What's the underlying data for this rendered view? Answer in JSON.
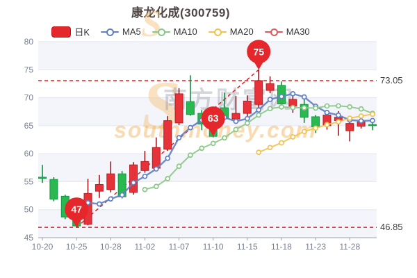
{
  "title": "康龙化成(300759)",
  "legend": {
    "items": [
      {
        "label": "日K",
        "type": "candle",
        "color": "#e5262b"
      },
      {
        "label": "MA5",
        "type": "line",
        "color": "#6080c6"
      },
      {
        "label": "MA10",
        "type": "line",
        "color": "#88c886"
      },
      {
        "label": "MA20",
        "type": "line",
        "color": "#f4c14e"
      },
      {
        "label": "MA30",
        "type": "line",
        "color": "#e1575a"
      }
    ]
  },
  "watermark": {
    "logo": "S",
    "text_cn": "南方财富网",
    "text_en": "southmoney.com"
  },
  "chart_data": {
    "type": "candlestick",
    "title": "康龙化成(300759)",
    "ylim": [
      45,
      80
    ],
    "y_ticks": [
      80,
      75,
      70,
      65,
      60,
      55,
      50,
      45
    ],
    "x_tick_indices": [
      0,
      3,
      6,
      9,
      12,
      15,
      18,
      21,
      24,
      27
    ],
    "x_tick_labels": [
      "10-20",
      "10-25",
      "10-28",
      "11-02",
      "11-07",
      "11-10",
      "11-15",
      "11-18",
      "11-23",
      "11-28"
    ],
    "dates": [
      "10-20",
      "10-21",
      "10-24",
      "10-25",
      "10-26",
      "10-27",
      "10-28",
      "10-31",
      "11-01",
      "11-02",
      "11-03",
      "11-04",
      "11-07",
      "11-08",
      "11-09",
      "11-10",
      "11-11",
      "11-14",
      "11-15",
      "11-16",
      "11-17",
      "11-18",
      "11-21",
      "11-22",
      "11-23",
      "11-24",
      "11-25",
      "11-28",
      "11-29",
      "11-30"
    ],
    "ohlc": [
      [
        55.8,
        58.0,
        54.8,
        55.6
      ],
      [
        55.4,
        55.8,
        51.5,
        51.9
      ],
      [
        52.4,
        52.7,
        48.3,
        48.7
      ],
      [
        49.3,
        49.6,
        46.85,
        47.1
      ],
      [
        47.4,
        55.5,
        47.2,
        52.9
      ],
      [
        53.3,
        56.2,
        52.1,
        54.5
      ],
      [
        53.6,
        58.6,
        53.1,
        56.4
      ],
      [
        56.4,
        56.9,
        52.0,
        52.3
      ],
      [
        53.1,
        58.5,
        52.7,
        58.0
      ],
      [
        57.0,
        60.5,
        56.6,
        58.6
      ],
      [
        57.4,
        62.9,
        57.0,
        61.1
      ],
      [
        60.8,
        66.7,
        60.5,
        65.9
      ],
      [
        65.5,
        71.7,
        65.1,
        70.7
      ],
      [
        69.3,
        74.0,
        66.8,
        67.0
      ],
      [
        67.2,
        67.8,
        64.2,
        65.3
      ],
      [
        65.9,
        66.4,
        62.9,
        63.1
      ],
      [
        68.2,
        70.9,
        66.0,
        66.3
      ],
      [
        66.2,
        70.3,
        65.7,
        67.2
      ],
      [
        67.2,
        70.4,
        66.1,
        69.4
      ],
      [
        68.8,
        75.0,
        68.2,
        73.05
      ],
      [
        71.3,
        73.8,
        70.8,
        72.5
      ],
      [
        72.2,
        72.9,
        68.0,
        68.9
      ],
      [
        68.5,
        70.7,
        67.3,
        69.7
      ],
      [
        68.8,
        69.9,
        65.5,
        66.5
      ],
      [
        66.6,
        66.9,
        63.7,
        64.8
      ],
      [
        65.0,
        67.8,
        64.3,
        66.9
      ],
      [
        65.9,
        67.6,
        63.2,
        66.5
      ],
      [
        64.1,
        66.1,
        62.2,
        65.4
      ],
      [
        64.9,
        67.0,
        64.5,
        65.7
      ],
      [
        65.2,
        66.1,
        64.2,
        65.1
      ]
    ],
    "ma_series": [
      {
        "name": "MA5",
        "period": 5,
        "color": "#6080c6",
        "width": 2.4
      },
      {
        "name": "MA10",
        "period": 10,
        "color": "#88c886",
        "width": 2
      },
      {
        "name": "MA20",
        "period": 20,
        "color": "#f4c14e",
        "width": 2
      },
      {
        "name": "MA30",
        "period": 30,
        "color": "#e1575a",
        "width": 2
      }
    ],
    "ref_lines": [
      {
        "value": 73.05,
        "label": "73.05"
      },
      {
        "value": 46.85,
        "label": "46.85"
      }
    ],
    "markers": [
      {
        "label": "47",
        "index": 3,
        "value": 46.85
      },
      {
        "label": "63",
        "index": 15,
        "value": 63.1
      },
      {
        "label": "75",
        "index": 19,
        "value": 75.0
      }
    ],
    "trendline": {
      "from": {
        "index": 3,
        "value": 46.85
      },
      "to": {
        "index": 19,
        "value": 75.0
      }
    },
    "colors": {
      "up_fill": "#e63339",
      "up_stroke": "#bd1c24",
      "up_wick": "#9c161d",
      "down_fill": "#2bb850",
      "down_stroke": "#119b41",
      "down_wick": "#0e8f3c",
      "band": "#f3f5fa",
      "grid": "#e2e6ef",
      "axis": "#9aa1ae",
      "axis_label": "#787f90",
      "ref_line": "#e31b23",
      "ref_label": "#3f3f3f",
      "pin": "#e5262b",
      "pin_text": "#ffffff",
      "watermark_gray": "rgba(140,146,158,0.38)",
      "watermark_orange": "rgba(245,166,66,0.42)",
      "watermark_logo": "rgba(246,196,130,0.50)"
    }
  }
}
